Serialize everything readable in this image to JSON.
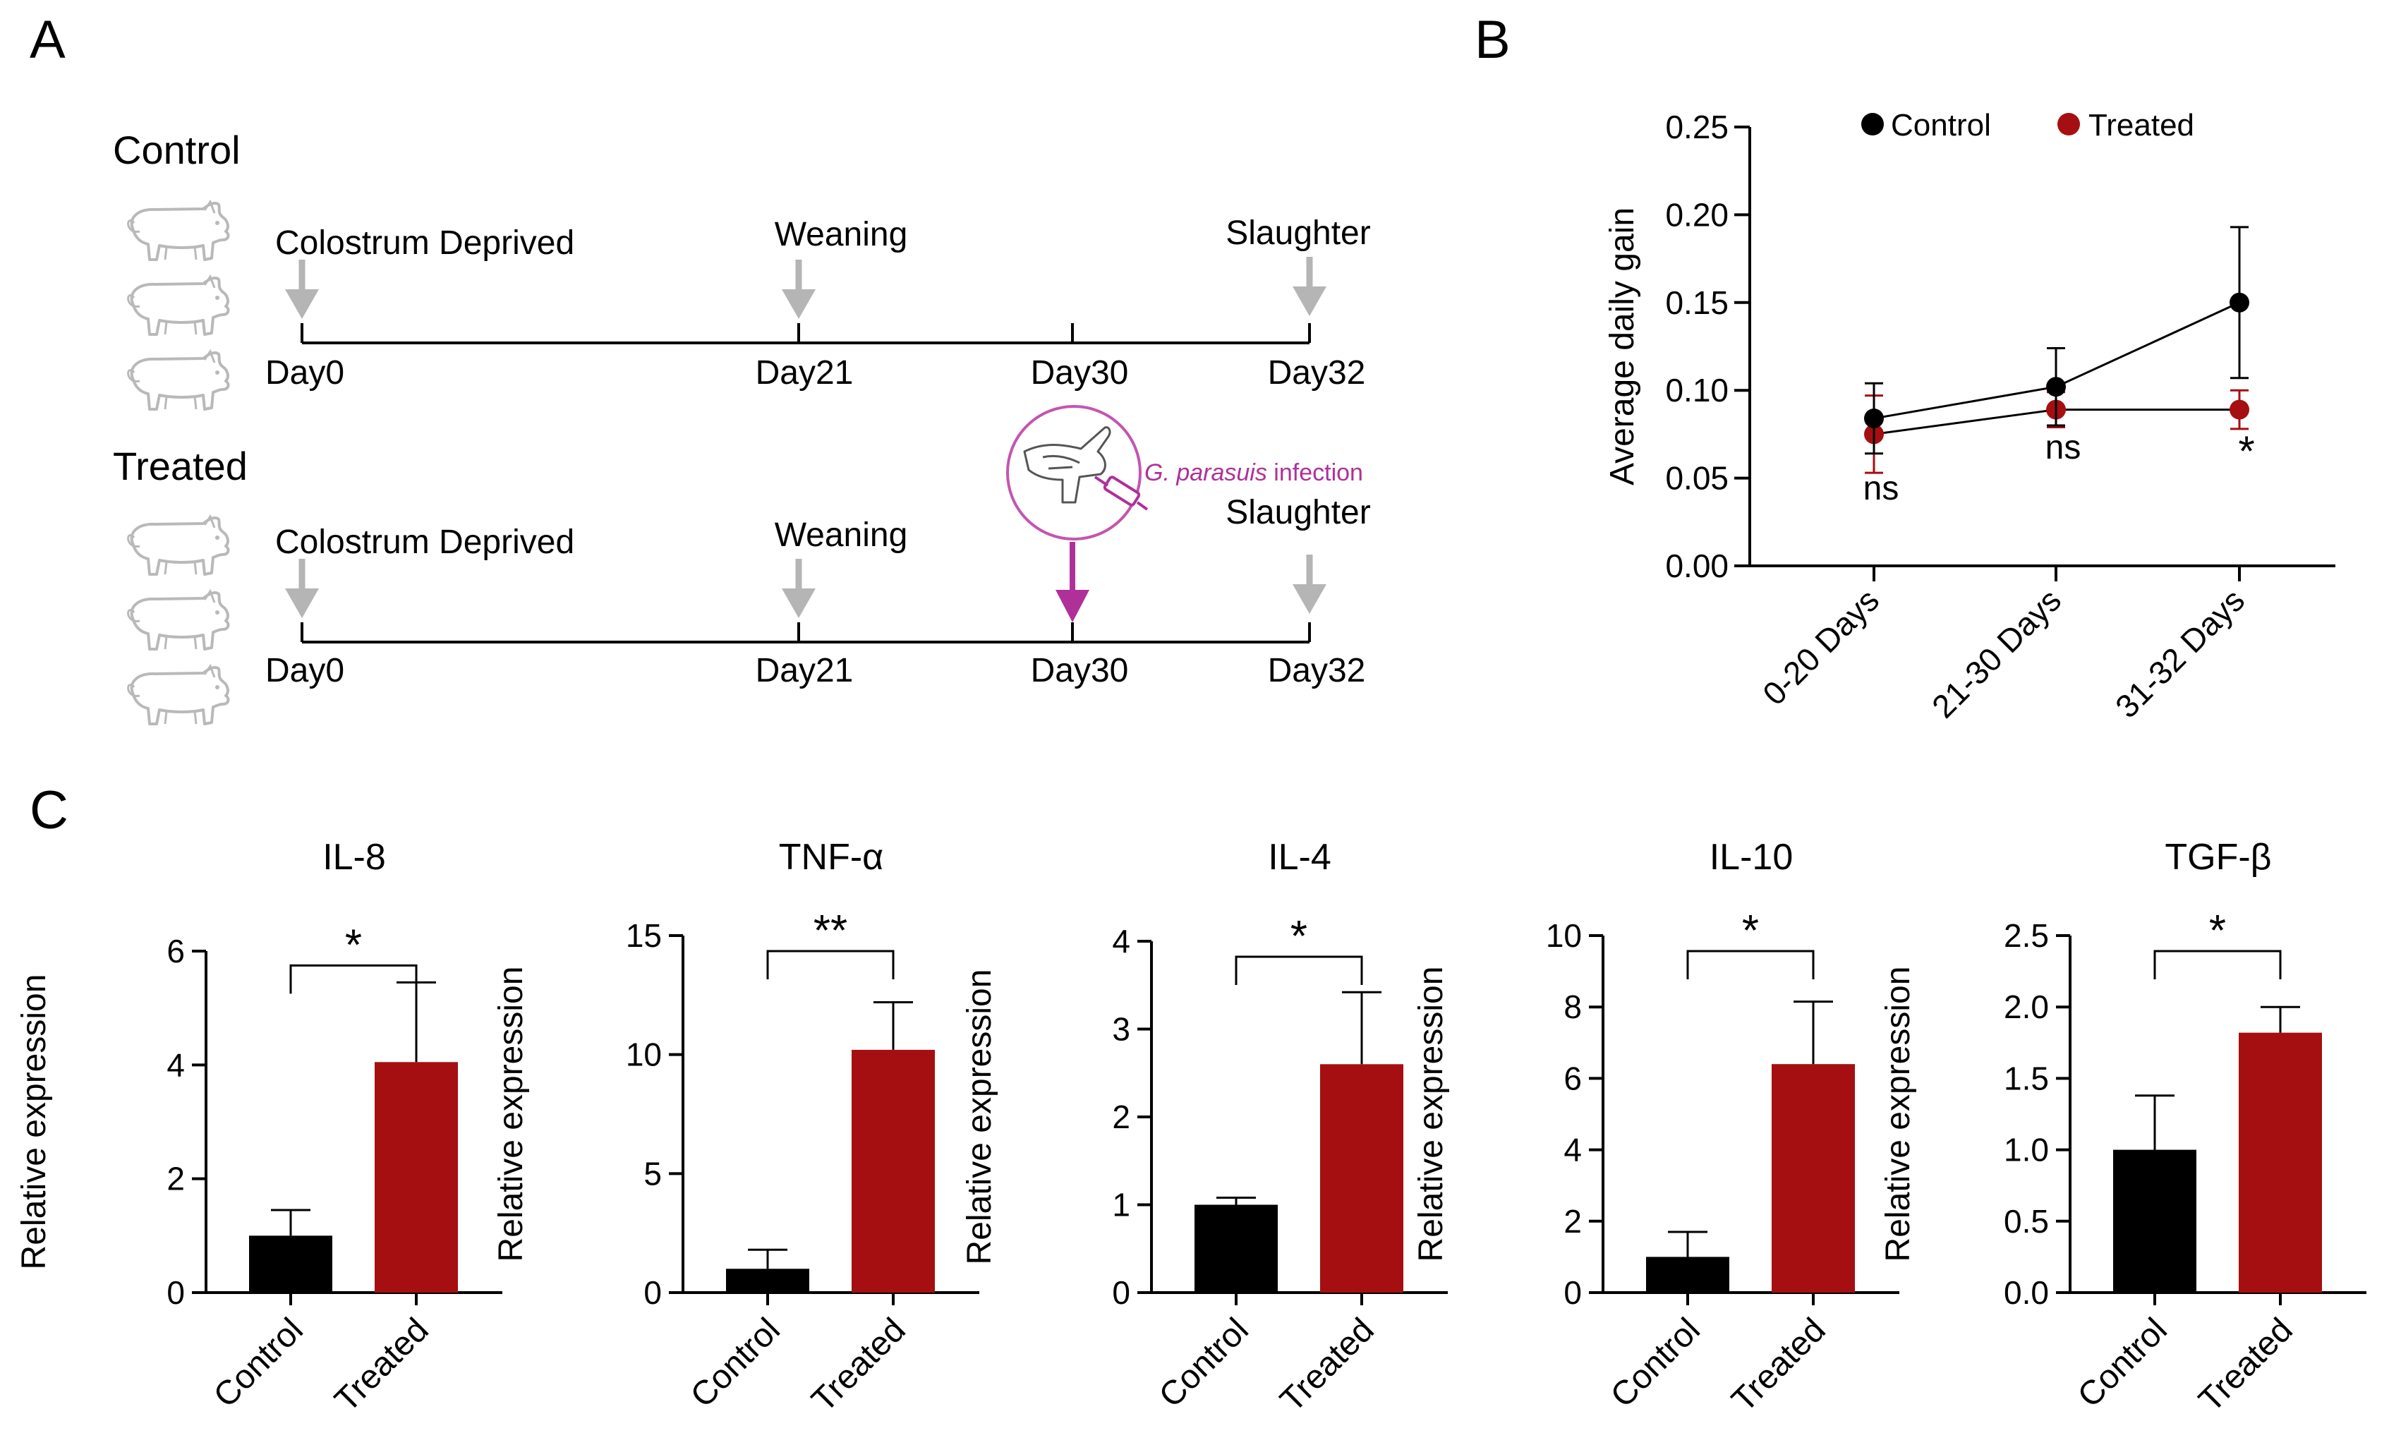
{
  "colors": {
    "control": "#000000",
    "treated": "#A50F12",
    "arrow": "#B5B5B5",
    "infection": "#B0309A",
    "axis": "#000000"
  },
  "panel_a": {
    "label": "A",
    "control": {
      "title": "Control",
      "events": [
        {
          "label": "Colostrum Deprived",
          "day": "Day0",
          "arrow": true
        },
        {
          "label": "Weaning",
          "day": "Day21",
          "arrow": true
        },
        {
          "label": "",
          "day": "Day30",
          "arrow": false
        },
        {
          "label": "Slaughter",
          "day": "Day32",
          "arrow": true
        }
      ]
    },
    "treated": {
      "title": "Treated",
      "events": [
        {
          "label": "Colostrum Deprived",
          "day": "Day0",
          "arrow": true
        },
        {
          "label": "Weaning",
          "day": "Day21",
          "arrow": true
        },
        {
          "label": "",
          "day": "Day30",
          "arrow": true,
          "infection": true
        },
        {
          "label": "Slaughter",
          "day": "Day32",
          "arrow": true
        }
      ],
      "infection_species": "G. parasuis",
      "infection_word": " infection"
    },
    "pig_icon": "pig-icon",
    "infection_icon": "pig-injection-icon"
  },
  "chart_data": [
    {
      "panel": "B",
      "type": "line",
      "categories": [
        "0-20 Days",
        "21-30 Days",
        "31-32 Days"
      ],
      "series": [
        {
          "name": "Control",
          "values": [
            0.084,
            0.102,
            0.15
          ],
          "errors": [
            0.02,
            0.022,
            0.043
          ]
        },
        {
          "name": "Treated",
          "values": [
            0.075,
            0.089,
            0.089
          ],
          "errors": [
            0.022,
            0.01,
            0.011
          ]
        }
      ],
      "annotations": [
        "ns",
        "ns",
        "*"
      ],
      "ylabel": "Average daily gain",
      "ylim": [
        0,
        0.25
      ],
      "yticks": [
        "0.00",
        "0.05",
        "0.10",
        "0.15",
        "0.20",
        "0.25"
      ],
      "legend": "top"
    },
    {
      "panel": "C",
      "type": "bar",
      "title": "IL-8",
      "categories": [
        "Control",
        "Treated"
      ],
      "values": [
        1.0,
        4.05
      ],
      "errors": [
        0.45,
        1.4
      ],
      "ylabel": "Relative expression",
      "ylim": [
        0,
        6
      ],
      "yticks": [
        "0",
        "2",
        "4",
        "6"
      ],
      "significance": "*"
    },
    {
      "panel": "C",
      "type": "bar",
      "title": "TNF-α",
      "categories": [
        "Control",
        "Treated"
      ],
      "values": [
        1.0,
        10.2
      ],
      "errors": [
        0.8,
        2.0
      ],
      "ylabel": "Relative expression",
      "ylim": [
        0,
        15
      ],
      "yticks": [
        "0",
        "5",
        "10",
        "15"
      ],
      "significance": "**"
    },
    {
      "panel": "C",
      "type": "bar",
      "title": "IL-4",
      "categories": [
        "Control",
        "Treated"
      ],
      "values": [
        1.0,
        2.6
      ],
      "errors": [
        0.08,
        0.82
      ],
      "ylabel": "Relative expression",
      "ylim": [
        0,
        4
      ],
      "yticks": [
        "0",
        "1",
        "2",
        "3",
        "4"
      ],
      "significance": "*"
    },
    {
      "panel": "C",
      "type": "bar",
      "title": "IL-10",
      "categories": [
        "Control",
        "Treated"
      ],
      "values": [
        1.0,
        6.4
      ],
      "errors": [
        0.7,
        1.75
      ],
      "ylabel": "Relative expression",
      "ylim": [
        0,
        10
      ],
      "yticks": [
        "0",
        "2",
        "4",
        "6",
        "8",
        "10"
      ],
      "significance": "*"
    },
    {
      "panel": "C",
      "type": "bar",
      "title": "TGF-β",
      "categories": [
        "Control",
        "Treated"
      ],
      "values": [
        1.0,
        1.82
      ],
      "errors": [
        0.38,
        0.18
      ],
      "ylabel": "Relative expression",
      "ylim": [
        0,
        2.5
      ],
      "yticks": [
        "0.0",
        "0.5",
        "1.0",
        "1.5",
        "2.0",
        "2.5"
      ],
      "significance": "*"
    }
  ],
  "labels": {
    "panel_b": "B",
    "panel_c": "C"
  }
}
